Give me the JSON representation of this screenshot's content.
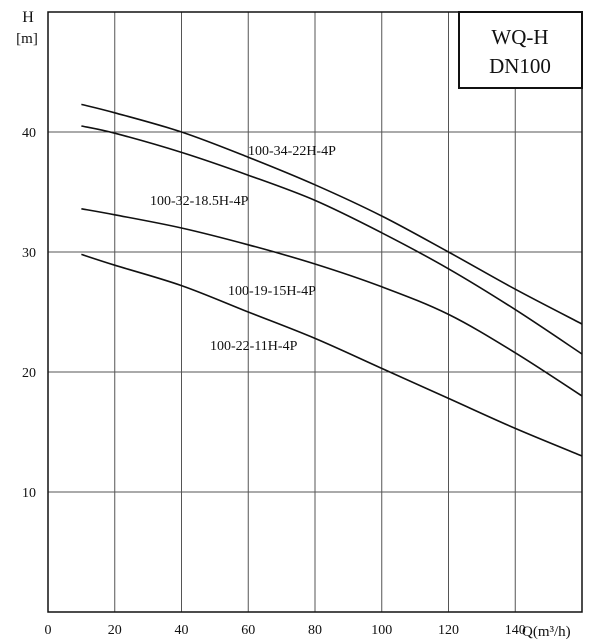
{
  "chart_data": {
    "type": "line",
    "title": [
      "WQ-H",
      "DN100"
    ],
    "ylabel": [
      "H",
      "[m]"
    ],
    "xlabel": "Q(m³/h)",
    "xlim": [
      0,
      160
    ],
    "ylim": [
      0,
      50
    ],
    "x_ticks": [
      0,
      20,
      40,
      60,
      80,
      100,
      120,
      140
    ],
    "y_ticks": [
      10,
      20,
      30,
      40
    ],
    "grid": true,
    "series": [
      {
        "name": "100-34-22H-4P",
        "x": [
          10,
          20,
          40,
          60,
          80,
          100,
          120,
          140,
          160
        ],
        "y": [
          42.3,
          41.6,
          40.0,
          37.9,
          35.6,
          33.0,
          30.0,
          26.9,
          24.0
        ]
      },
      {
        "name": "100-32-18.5H-4P",
        "x": [
          10,
          20,
          40,
          60,
          80,
          100,
          120,
          140,
          160
        ],
        "y": [
          40.5,
          39.9,
          38.3,
          36.4,
          34.3,
          31.6,
          28.6,
          25.2,
          21.5
        ]
      },
      {
        "name": "100-19-15H-4P",
        "x": [
          10,
          20,
          40,
          60,
          80,
          100,
          120,
          140,
          160
        ],
        "y": [
          33.6,
          33.1,
          32.0,
          30.6,
          29.0,
          27.1,
          24.8,
          21.6,
          18.0
        ]
      },
      {
        "name": "100-22-11H-4P",
        "x": [
          10,
          20,
          40,
          60,
          80,
          100,
          120,
          140,
          160
        ],
        "y": [
          29.8,
          28.9,
          27.2,
          25.0,
          22.8,
          20.3,
          17.8,
          15.3,
          13.0
        ]
      }
    ]
  }
}
